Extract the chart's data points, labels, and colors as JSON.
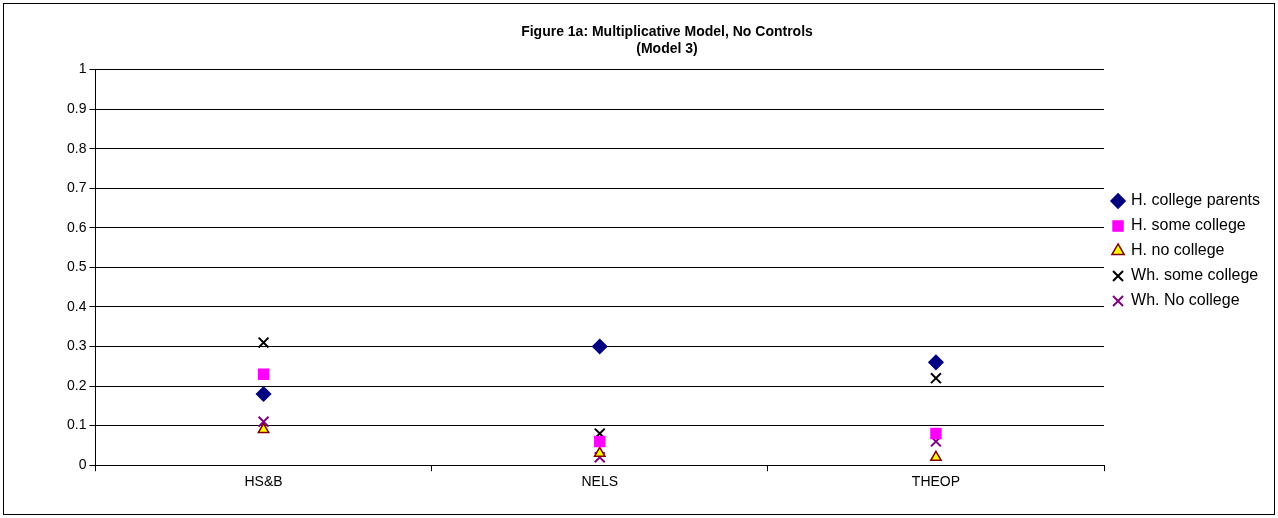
{
  "chart_data": {
    "type": "scatter",
    "title": [
      "Figure 1a: Multiplicative Model, No Controls",
      "(Model 3)"
    ],
    "categories": [
      "HS&B",
      "NELS",
      "THEOP"
    ],
    "series": [
      {
        "name": "H. college parents",
        "color": "#000080",
        "marker": "diamond",
        "values": [
          0.18,
          0.3,
          0.26
        ]
      },
      {
        "name": "H. some college",
        "color": "#ff00ff",
        "marker": "square",
        "values": [
          0.23,
          0.06,
          0.08
        ]
      },
      {
        "name": "H. no college",
        "color": "#ffff00",
        "marker": "triangle",
        "values": [
          0.09,
          0.03,
          0.02
        ]
      },
      {
        "name": "Wh. some college",
        "color": "#000000",
        "marker": "cross",
        "values": [
          0.31,
          0.08,
          0.22
        ]
      },
      {
        "name": "Wh. No college",
        "color": "#800080",
        "marker": "cross",
        "values": [
          0.11,
          0.02,
          0.06
        ]
      }
    ],
    "ylim": [
      0,
      1
    ],
    "yticks": [
      0,
      0.1,
      0.2,
      0.3,
      0.4,
      0.5,
      0.6,
      0.7,
      0.8,
      0.9,
      1
    ],
    "grid": "y",
    "legend": "right"
  }
}
